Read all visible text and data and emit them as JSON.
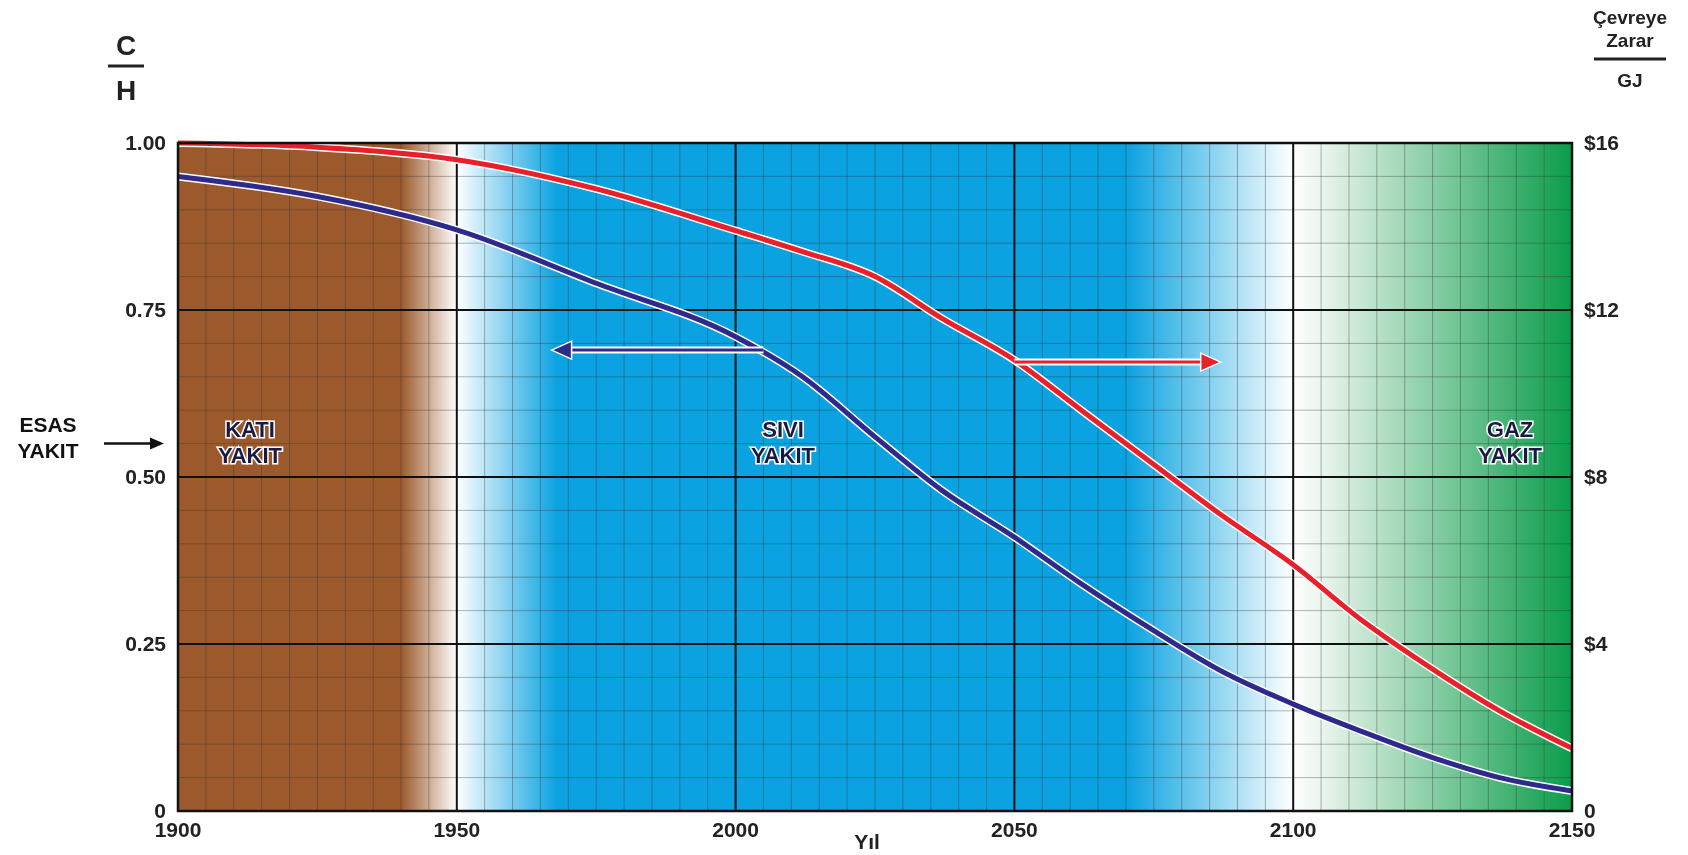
{
  "chart_data": {
    "type": "line",
    "xlabel": "Yıl",
    "ylabel": "C H",
    "y2label": "Çevreye Zarar GJ",
    "xlim": [
      1900,
      2150
    ],
    "xticks": [
      1900,
      1950,
      2000,
      2050,
      2100,
      2150
    ],
    "ylim": [
      0,
      1
    ],
    "yticks": [
      {
        "value": 0,
        "label": "0"
      },
      {
        "value": 0.25,
        "label": "0.25"
      },
      {
        "value": 0.5,
        "label": "0.50"
      },
      {
        "value": 0.75,
        "label": "0.75"
      },
      {
        "value": 1,
        "label": "1.00"
      }
    ],
    "y2lim": [
      0,
      16
    ],
    "y2ticks": [
      {
        "value": 0,
        "label": "0"
      },
      {
        "value": 4,
        "label": "$4"
      },
      {
        "value": 8,
        "label": "$8"
      },
      {
        "value": 12,
        "label": "$12"
      },
      {
        "value": 16,
        "label": "$16"
      }
    ],
    "grid": true,
    "marker": "none",
    "line_style": "solid",
    "series": [
      {
        "color": "#2e2a8c",
        "x": [
          1900,
          1925,
          1950,
          1975,
          2000,
          2012,
          2025,
          2037,
          2050,
          2062,
          2075,
          2087,
          2100,
          2112,
          2125,
          2137,
          2150
        ],
        "values": [
          0.95,
          0.92,
          0.87,
          0.79,
          0.71,
          0.65,
          0.56,
          0.48,
          0.41,
          0.34,
          0.27,
          0.21,
          0.16,
          0.12,
          0.08,
          0.05,
          0.03
        ]
      },
      {
        "color": "#e8202a",
        "axis": "y2",
        "x": [
          1900,
          1925,
          1950,
          1975,
          2000,
          2012,
          2025,
          2037,
          2050,
          2062,
          2075,
          2087,
          2100,
          2112,
          2125,
          2137,
          2150
        ],
        "values": [
          16,
          15.9,
          15.6,
          14.9,
          13.9,
          13.4,
          12.8,
          11.8,
          10.8,
          9.6,
          8.3,
          7.1,
          5.9,
          4.6,
          3.4,
          2.4,
          1.5
        ]
      }
    ],
    "bands": [
      {
        "axis": "x",
        "from": 1900,
        "to": 1950,
        "label": "KATI YAKIT",
        "color": "#9c5a2c"
      },
      {
        "axis": "x",
        "from": 1950,
        "to": 2100,
        "label": "SIVI YAKIT",
        "color": "#0aa2e0"
      },
      {
        "axis": "x",
        "from": 2100,
        "to": 2150,
        "label": "GAZ YAKIT",
        "color": "#0a9c4a"
      }
    ],
    "annotations": [
      "ESAS YAKIT"
    ]
  }
}
